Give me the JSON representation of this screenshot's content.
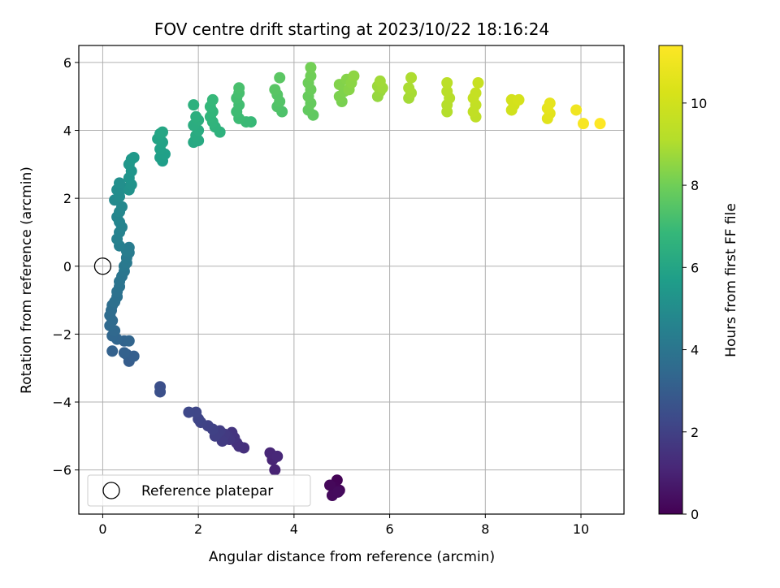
{
  "chart_data": {
    "type": "scatter",
    "title": "FOV centre drift starting at 2023/10/22 18:16:24",
    "xlabel": "Angular distance from reference (arcmin)",
    "ylabel": "Rotation from reference (arcmin)",
    "xlim": [
      -0.5,
      10.9
    ],
    "ylim": [
      -7.3,
      6.5
    ],
    "xticks": [
      0,
      2,
      4,
      6,
      8,
      10
    ],
    "yticks": [
      -6,
      -4,
      -2,
      0,
      2,
      4,
      6
    ],
    "xtick_labels": [
      "0",
      "2",
      "4",
      "6",
      "8",
      "10"
    ],
    "ytick_labels": [
      "−6",
      "−4",
      "−2",
      "0",
      "2",
      "4",
      "6"
    ],
    "grid": true,
    "legend": {
      "position": "lower-left",
      "entries": [
        "Reference platepar"
      ]
    },
    "reference_point": {
      "x": 0,
      "y": 0
    },
    "colorbar": {
      "label": "Hours from first FF file",
      "colormap": "viridis",
      "range": [
        0,
        11.4
      ],
      "ticks": [
        0,
        2,
        4,
        6,
        8,
        10
      ],
      "tick_labels": [
        "0",
        "2",
        "4",
        "6",
        "8",
        "10"
      ]
    },
    "points": [
      {
        "x": 4.9,
        "y": -6.3,
        "t": 0.05
      },
      {
        "x": 4.85,
        "y": -6.5,
        "t": 0.1
      },
      {
        "x": 4.95,
        "y": -6.6,
        "t": 0.15
      },
      {
        "x": 4.75,
        "y": -6.45,
        "t": 0.2
      },
      {
        "x": 4.8,
        "y": -6.75,
        "t": 0.25
      },
      {
        "x": 4.92,
        "y": -6.65,
        "t": 0.3
      },
      {
        "x": 3.6,
        "y": -6.0,
        "t": 1.0
      },
      {
        "x": 3.55,
        "y": -5.7,
        "t": 1.05
      },
      {
        "x": 3.5,
        "y": -5.5,
        "t": 1.1
      },
      {
        "x": 3.65,
        "y": -5.6,
        "t": 1.15
      },
      {
        "x": 2.95,
        "y": -5.35,
        "t": 1.4
      },
      {
        "x": 2.85,
        "y": -5.3,
        "t": 1.45
      },
      {
        "x": 2.8,
        "y": -5.2,
        "t": 1.5
      },
      {
        "x": 2.75,
        "y": -5.05,
        "t": 1.55
      },
      {
        "x": 2.7,
        "y": -4.9,
        "t": 1.6
      },
      {
        "x": 2.65,
        "y": -5.1,
        "t": 1.65
      },
      {
        "x": 2.6,
        "y": -5.0,
        "t": 1.7
      },
      {
        "x": 2.55,
        "y": -4.95,
        "t": 1.75
      },
      {
        "x": 2.5,
        "y": -5.15,
        "t": 1.8
      },
      {
        "x": 2.45,
        "y": -4.85,
        "t": 1.85
      },
      {
        "x": 2.4,
        "y": -4.9,
        "t": 1.9
      },
      {
        "x": 2.35,
        "y": -5.0,
        "t": 1.95
      },
      {
        "x": 2.3,
        "y": -4.8,
        "t": 2.0
      },
      {
        "x": 2.2,
        "y": -4.7,
        "t": 2.05
      },
      {
        "x": 2.05,
        "y": -4.6,
        "t": 2.1
      },
      {
        "x": 2.0,
        "y": -4.5,
        "t": 2.15
      },
      {
        "x": 1.95,
        "y": -4.3,
        "t": 2.2
      },
      {
        "x": 1.8,
        "y": -4.3,
        "t": 2.25
      },
      {
        "x": 1.2,
        "y": -3.55,
        "t": 2.5
      },
      {
        "x": 1.2,
        "y": -3.7,
        "t": 2.55
      },
      {
        "x": 0.55,
        "y": -2.8,
        "t": 3.0
      },
      {
        "x": 0.5,
        "y": -2.6,
        "t": 3.05
      },
      {
        "x": 0.65,
        "y": -2.65,
        "t": 3.1
      },
      {
        "x": 0.45,
        "y": -2.55,
        "t": 3.15
      },
      {
        "x": 0.2,
        "y": -2.5,
        "t": 3.2
      },
      {
        "x": 0.45,
        "y": -2.2,
        "t": 3.25
      },
      {
        "x": 0.55,
        "y": -2.2,
        "t": 3.3
      },
      {
        "x": 0.3,
        "y": -2.15,
        "t": 3.35
      },
      {
        "x": 0.2,
        "y": -2.05,
        "t": 3.4
      },
      {
        "x": 0.25,
        "y": -1.9,
        "t": 3.45
      },
      {
        "x": 0.15,
        "y": -1.75,
        "t": 3.5
      },
      {
        "x": 0.2,
        "y": -1.6,
        "t": 3.55
      },
      {
        "x": 0.15,
        "y": -1.45,
        "t": 3.6
      },
      {
        "x": 0.18,
        "y": -1.3,
        "t": 3.65
      },
      {
        "x": 0.2,
        "y": -1.15,
        "t": 3.7
      },
      {
        "x": 0.25,
        "y": -1.05,
        "t": 3.75
      },
      {
        "x": 0.3,
        "y": -0.9,
        "t": 3.8
      },
      {
        "x": 0.3,
        "y": -0.75,
        "t": 3.85
      },
      {
        "x": 0.35,
        "y": -0.6,
        "t": 3.9
      },
      {
        "x": 0.35,
        "y": -0.45,
        "t": 3.95
      },
      {
        "x": 0.4,
        "y": -0.3,
        "t": 4.0
      },
      {
        "x": 0.45,
        "y": -0.15,
        "t": 4.05
      },
      {
        "x": 0.45,
        "y": 0.0,
        "t": 4.1
      },
      {
        "x": 0.5,
        "y": 0.1,
        "t": 4.15
      },
      {
        "x": 0.5,
        "y": 0.25,
        "t": 4.2
      },
      {
        "x": 0.55,
        "y": 0.4,
        "t": 4.25
      },
      {
        "x": 0.55,
        "y": 0.55,
        "t": 4.3
      },
      {
        "x": 0.5,
        "y": 0.45,
        "t": 4.35
      },
      {
        "x": 0.35,
        "y": 0.6,
        "t": 4.45
      },
      {
        "x": 0.3,
        "y": 0.8,
        "t": 4.5
      },
      {
        "x": 0.35,
        "y": 1.0,
        "t": 4.55
      },
      {
        "x": 0.4,
        "y": 1.15,
        "t": 4.6
      },
      {
        "x": 0.35,
        "y": 1.3,
        "t": 4.65
      },
      {
        "x": 0.3,
        "y": 1.45,
        "t": 4.7
      },
      {
        "x": 0.35,
        "y": 1.6,
        "t": 4.75
      },
      {
        "x": 0.4,
        "y": 1.75,
        "t": 4.8
      },
      {
        "x": 0.25,
        "y": 1.95,
        "t": 4.9
      },
      {
        "x": 0.35,
        "y": 2.05,
        "t": 4.95
      },
      {
        "x": 0.3,
        "y": 2.25,
        "t": 5.0
      },
      {
        "x": 0.45,
        "y": 2.3,
        "t": 5.05
      },
      {
        "x": 0.35,
        "y": 2.45,
        "t": 5.1
      },
      {
        "x": 0.55,
        "y": 2.25,
        "t": 5.2
      },
      {
        "x": 0.6,
        "y": 2.4,
        "t": 5.25
      },
      {
        "x": 0.55,
        "y": 2.6,
        "t": 5.3
      },
      {
        "x": 0.6,
        "y": 2.8,
        "t": 5.35
      },
      {
        "x": 0.55,
        "y": 3.0,
        "t": 5.4
      },
      {
        "x": 0.6,
        "y": 3.15,
        "t": 5.45
      },
      {
        "x": 0.65,
        "y": 3.2,
        "t": 5.5
      },
      {
        "x": 1.25,
        "y": 3.1,
        "t": 5.7
      },
      {
        "x": 1.2,
        "y": 3.2,
        "t": 5.75
      },
      {
        "x": 1.3,
        "y": 3.3,
        "t": 5.8
      },
      {
        "x": 1.2,
        "y": 3.45,
        "t": 5.85
      },
      {
        "x": 1.25,
        "y": 3.65,
        "t": 5.9
      },
      {
        "x": 1.15,
        "y": 3.75,
        "t": 5.95
      },
      {
        "x": 1.2,
        "y": 3.9,
        "t": 6.0
      },
      {
        "x": 1.25,
        "y": 3.95,
        "t": 6.05
      },
      {
        "x": 1.9,
        "y": 3.65,
        "t": 6.15
      },
      {
        "x": 2.0,
        "y": 3.7,
        "t": 6.2
      },
      {
        "x": 1.95,
        "y": 3.85,
        "t": 6.25
      },
      {
        "x": 2.0,
        "y": 4.0,
        "t": 6.3
      },
      {
        "x": 1.9,
        "y": 4.15,
        "t": 6.35
      },
      {
        "x": 2.0,
        "y": 4.3,
        "t": 6.4
      },
      {
        "x": 1.95,
        "y": 4.4,
        "t": 6.45
      },
      {
        "x": 1.9,
        "y": 4.75,
        "t": 6.5
      },
      {
        "x": 2.45,
        "y": 3.95,
        "t": 6.55
      },
      {
        "x": 2.35,
        "y": 4.1,
        "t": 6.6
      },
      {
        "x": 2.3,
        "y": 4.25,
        "t": 6.65
      },
      {
        "x": 2.25,
        "y": 4.4,
        "t": 6.7
      },
      {
        "x": 2.3,
        "y": 4.55,
        "t": 6.75
      },
      {
        "x": 2.25,
        "y": 4.7,
        "t": 6.8
      },
      {
        "x": 2.3,
        "y": 4.9,
        "t": 6.85
      },
      {
        "x": 3.1,
        "y": 4.25,
        "t": 6.9
      },
      {
        "x": 3.0,
        "y": 4.25,
        "t": 6.95
      },
      {
        "x": 2.85,
        "y": 4.35,
        "t": 7.0
      },
      {
        "x": 2.8,
        "y": 4.55,
        "t": 7.05
      },
      {
        "x": 2.85,
        "y": 4.75,
        "t": 7.1
      },
      {
        "x": 2.8,
        "y": 4.95,
        "t": 7.15
      },
      {
        "x": 2.85,
        "y": 5.1,
        "t": 7.2
      },
      {
        "x": 2.85,
        "y": 5.25,
        "t": 7.25
      },
      {
        "x": 3.75,
        "y": 4.55,
        "t": 7.35
      },
      {
        "x": 3.65,
        "y": 4.7,
        "t": 7.4
      },
      {
        "x": 3.7,
        "y": 4.85,
        "t": 7.45
      },
      {
        "x": 3.65,
        "y": 5.05,
        "t": 7.5
      },
      {
        "x": 3.6,
        "y": 5.2,
        "t": 7.55
      },
      {
        "x": 3.7,
        "y": 5.55,
        "t": 7.6
      },
      {
        "x": 4.4,
        "y": 4.45,
        "t": 7.7
      },
      {
        "x": 4.3,
        "y": 4.6,
        "t": 7.75
      },
      {
        "x": 4.35,
        "y": 4.8,
        "t": 7.8
      },
      {
        "x": 4.3,
        "y": 5.0,
        "t": 7.85
      },
      {
        "x": 4.35,
        "y": 5.2,
        "t": 7.9
      },
      {
        "x": 4.3,
        "y": 5.4,
        "t": 7.95
      },
      {
        "x": 4.35,
        "y": 5.6,
        "t": 8.0
      },
      {
        "x": 4.35,
        "y": 5.85,
        "t": 8.05
      },
      {
        "x": 5.0,
        "y": 4.85,
        "t": 8.15
      },
      {
        "x": 4.95,
        "y": 5.0,
        "t": 8.2
      },
      {
        "x": 5.05,
        "y": 5.15,
        "t": 8.25
      },
      {
        "x": 4.95,
        "y": 5.35,
        "t": 8.3
      },
      {
        "x": 5.1,
        "y": 5.5,
        "t": 8.35
      },
      {
        "x": 5.15,
        "y": 5.2,
        "t": 8.4
      },
      {
        "x": 5.2,
        "y": 5.4,
        "t": 8.45
      },
      {
        "x": 5.25,
        "y": 5.6,
        "t": 8.5
      },
      {
        "x": 5.75,
        "y": 5.0,
        "t": 8.6
      },
      {
        "x": 5.8,
        "y": 5.15,
        "t": 8.65
      },
      {
        "x": 5.75,
        "y": 5.3,
        "t": 8.7
      },
      {
        "x": 5.85,
        "y": 5.25,
        "t": 8.75
      },
      {
        "x": 5.8,
        "y": 5.45,
        "t": 8.8
      },
      {
        "x": 6.4,
        "y": 4.95,
        "t": 8.85
      },
      {
        "x": 6.45,
        "y": 5.1,
        "t": 8.9
      },
      {
        "x": 6.4,
        "y": 5.25,
        "t": 8.95
      },
      {
        "x": 6.45,
        "y": 5.55,
        "t": 9.0
      },
      {
        "x": 7.2,
        "y": 4.55,
        "t": 9.1
      },
      {
        "x": 7.2,
        "y": 4.75,
        "t": 9.15
      },
      {
        "x": 7.25,
        "y": 4.95,
        "t": 9.2
      },
      {
        "x": 7.2,
        "y": 5.15,
        "t": 9.25
      },
      {
        "x": 7.2,
        "y": 5.4,
        "t": 9.3
      },
      {
        "x": 7.8,
        "y": 4.4,
        "t": 9.45
      },
      {
        "x": 7.75,
        "y": 4.55,
        "t": 9.5
      },
      {
        "x": 7.8,
        "y": 4.75,
        "t": 9.55
      },
      {
        "x": 7.75,
        "y": 4.95,
        "t": 9.6
      },
      {
        "x": 7.8,
        "y": 5.1,
        "t": 9.65
      },
      {
        "x": 7.85,
        "y": 5.4,
        "t": 9.7
      },
      {
        "x": 8.55,
        "y": 4.6,
        "t": 10.0
      },
      {
        "x": 8.6,
        "y": 4.75,
        "t": 10.05
      },
      {
        "x": 8.55,
        "y": 4.9,
        "t": 10.1
      },
      {
        "x": 8.7,
        "y": 4.9,
        "t": 10.15
      },
      {
        "x": 9.3,
        "y": 4.35,
        "t": 10.55
      },
      {
        "x": 9.35,
        "y": 4.5,
        "t": 10.6
      },
      {
        "x": 9.3,
        "y": 4.65,
        "t": 10.65
      },
      {
        "x": 9.35,
        "y": 4.8,
        "t": 10.7
      },
      {
        "x": 9.9,
        "y": 4.6,
        "t": 11.0
      },
      {
        "x": 10.05,
        "y": 4.2,
        "t": 11.2
      },
      {
        "x": 10.4,
        "y": 4.2,
        "t": 11.4
      }
    ]
  }
}
